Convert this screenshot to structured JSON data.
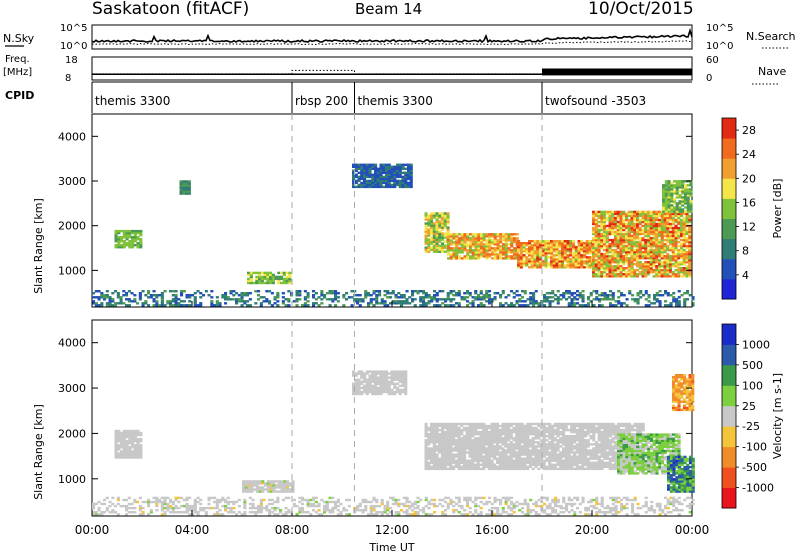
{
  "header": {
    "station": "Saskatoon (fitACF)",
    "beam": "Beam 14",
    "date": "10/Oct/2015"
  },
  "noise_panel": {
    "left_label": "N.Sky",
    "right_label": "N.Search",
    "left_ticks": [
      "10^5",
      "10^0"
    ],
    "right_ticks": [
      "10^5",
      "10^0"
    ]
  },
  "freq_panel": {
    "left_label_1": "Freq.",
    "left_label_2": "[MHz]",
    "right_label": "Nave",
    "left_ticks": [
      "18",
      "8"
    ],
    "right_ticks": [
      "60",
      "0"
    ]
  },
  "cpid_panel": {
    "label": "CPID",
    "segments": [
      {
        "start_hour": 0,
        "end_hour": 8,
        "text": "themis 3300"
      },
      {
        "start_hour": 8,
        "end_hour": 10.5,
        "text": "rbsp 200"
      },
      {
        "start_hour": 10.5,
        "end_hour": 18,
        "text": "themis 3300"
      },
      {
        "start_hour": 18,
        "end_hour": 24,
        "text": "twofsound -3503"
      }
    ]
  },
  "chart_data": [
    {
      "type": "heatmap",
      "title": "Power",
      "xlabel": "",
      "ylabel": "Slant Range [km]",
      "xlim": [
        0,
        24
      ],
      "ylim": [
        180,
        4500
      ],
      "y_ticks": [
        "1000",
        "2000",
        "3000",
        "4000"
      ],
      "colorbar_label": "Power [dB]",
      "colorbar_ticks": [
        "4",
        "8",
        "12",
        "16",
        "20",
        "24",
        "28"
      ],
      "colorbar_range": [
        0,
        30
      ],
      "colors": [
        "#1f24d4",
        "#2250b8",
        "#2f7d74",
        "#4d9a55",
        "#7fc23b",
        "#f4e64a",
        "#f0a030",
        "#f06a20",
        "#e02a14"
      ],
      "regions": [
        {
          "t0": 0.9,
          "t1": 2.0,
          "r0": 1500,
          "r1": 1900,
          "v0": 12,
          "v1": 16
        },
        {
          "t0": 3.5,
          "t1": 3.9,
          "r0": 2700,
          "r1": 3000,
          "v0": 8,
          "v1": 12
        },
        {
          "t0": 6.2,
          "t1": 7.9,
          "r0": 700,
          "r1": 950,
          "v0": 12,
          "v1": 18
        },
        {
          "t0": 10.4,
          "t1": 12.8,
          "r0": 2850,
          "r1": 3350,
          "v0": 4,
          "v1": 8
        },
        {
          "t0": 13.3,
          "t1": 14.2,
          "r0": 1400,
          "r1": 2300,
          "v0": 12,
          "v1": 22
        },
        {
          "t0": 14.2,
          "t1": 17.0,
          "r0": 1250,
          "r1": 1800,
          "v0": 14,
          "v1": 26
        },
        {
          "t0": 17.0,
          "t1": 20.0,
          "r0": 1050,
          "r1": 1650,
          "v0": 16,
          "v1": 28
        },
        {
          "t0": 20.0,
          "t1": 23.9,
          "r0": 850,
          "r1": 2300,
          "v0": 14,
          "v1": 28
        },
        {
          "t0": 22.8,
          "t1": 24.0,
          "r0": 2300,
          "r1": 3000,
          "v0": 10,
          "v1": 18
        },
        {
          "t0": 0.0,
          "t1": 24.0,
          "r0": 200,
          "r1": 560,
          "v0": 4,
          "v1": 12
        }
      ]
    },
    {
      "type": "heatmap",
      "title": "Velocity",
      "xlabel": "Time UT",
      "ylabel": "Slant Range [km]",
      "xlim": [
        0,
        24
      ],
      "ylim": [
        180,
        4500
      ],
      "y_ticks": [
        "1000",
        "2000",
        "3000",
        "4000"
      ],
      "x_ticks": [
        "00:00",
        "04:00",
        "08:00",
        "12:00",
        "16:00",
        "20:00",
        "00:00"
      ],
      "colorbar_label": "Velocity [m s-1]",
      "colorbar_ticks": [
        "1000",
        "500",
        "100",
        "25",
        "-25",
        "-100",
        "-500",
        "-1000"
      ],
      "colorbar_range": [
        -1200,
        1200
      ],
      "colors": [
        "#e8141e",
        "#f05020",
        "#f08c2a",
        "#f4c43a",
        "#c8c8c8",
        "#7ccf3e",
        "#3a9a4a",
        "#2a5aa8",
        "#1a2cc8"
      ],
      "regions": [
        {
          "t0": 0.9,
          "t1": 2.0,
          "r0": 1450,
          "r1": 2050,
          "v0": -20,
          "v1": 20
        },
        {
          "t0": 6.0,
          "t1": 8.0,
          "r0": 700,
          "r1": 950,
          "v0": -150,
          "v1": 150
        },
        {
          "t0": 10.4,
          "t1": 12.5,
          "r0": 2850,
          "r1": 3350,
          "v0": -20,
          "v1": 20
        },
        {
          "t0": 13.3,
          "t1": 22.0,
          "r0": 1200,
          "r1": 2200,
          "v0": -20,
          "v1": 20
        },
        {
          "t0": 21.0,
          "t1": 23.5,
          "r0": 1100,
          "r1": 2000,
          "v0": -20,
          "v1": 500
        },
        {
          "t0": 23.0,
          "t1": 24.0,
          "r0": 700,
          "r1": 1500,
          "v0": 200,
          "v1": 1000
        },
        {
          "t0": 23.2,
          "t1": 24.0,
          "r0": 2500,
          "r1": 3300,
          "v0": -700,
          "v1": -200
        },
        {
          "t0": 0.0,
          "t1": 24.0,
          "r0": 200,
          "r1": 600,
          "v0": -150,
          "v1": 150
        }
      ]
    }
  ]
}
